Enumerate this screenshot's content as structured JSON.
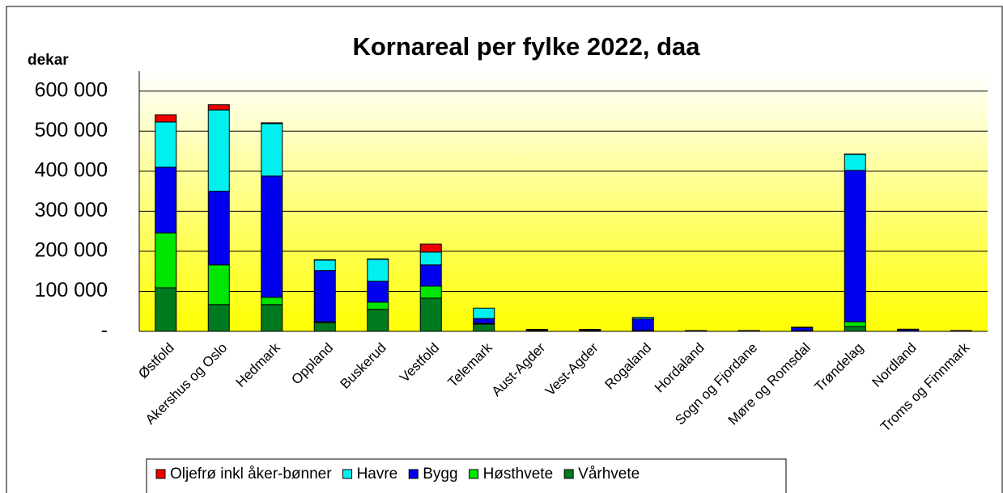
{
  "chart_data": {
    "type": "stacked_bar",
    "title": "Kornareal per fylke 2022, daa",
    "y_label": "dekar",
    "categories": [
      "Østfold",
      "Akershus og Oslo",
      "Hedmark",
      "Oppland",
      "Buskerud",
      "Vestfold",
      "Telemark",
      "Aust-Agder",
      "Vest-Agder",
      "Rogaland",
      "Hordaland",
      "Sogn og Fjordane",
      "Møre og Romsdal",
      "Trøndelag",
      "Nordland",
      "Troms og Finnmark"
    ],
    "series": [
      {
        "name": "Vårhvete",
        "color": "#007a1f",
        "values": [
          109000,
          67000,
          67000,
          22000,
          55000,
          83000,
          18000,
          1000,
          1000,
          1000,
          500,
          500,
          1000,
          12000,
          500,
          500
        ]
      },
      {
        "name": "Høsthvete",
        "color": "#00e600",
        "values": [
          137000,
          99000,
          18000,
          2000,
          18000,
          30000,
          2000,
          0,
          0,
          1000,
          0,
          0,
          500,
          12000,
          0,
          0
        ]
      },
      {
        "name": "Bygg",
        "color": "#0000ee",
        "values": [
          164000,
          184000,
          303000,
          128000,
          52000,
          53000,
          12000,
          2000,
          2000,
          29000,
          1000,
          1000,
          8000,
          378000,
          4000,
          1000
        ]
      },
      {
        "name": "Havre",
        "color": "#00f0f0",
        "values": [
          113000,
          203000,
          131000,
          26000,
          55000,
          32000,
          26000,
          2000,
          2000,
          4000,
          500,
          500,
          1000,
          40000,
          1000,
          500
        ]
      },
      {
        "name": "Oljefrø inkl åker-bønner",
        "color": "#ee0000",
        "values": [
          18000,
          13000,
          2000,
          1000,
          1000,
          20000,
          0,
          0,
          0,
          0,
          0,
          0,
          0,
          1000,
          0,
          0
        ]
      }
    ],
    "legend_order": [
      4,
      3,
      2,
      1,
      0
    ],
    "ylim": [
      0,
      650000
    ],
    "yticks": [
      {
        "value": 0,
        "label": "-"
      },
      {
        "value": 100000,
        "label": "100 000"
      },
      {
        "value": 200000,
        "label": "200 000"
      },
      {
        "value": 300000,
        "label": "300 000"
      },
      {
        "value": 400000,
        "label": "400 000"
      },
      {
        "value": 500000,
        "label": "500 000"
      },
      {
        "value": 600000,
        "label": "600 000"
      }
    ],
    "grid": true
  }
}
